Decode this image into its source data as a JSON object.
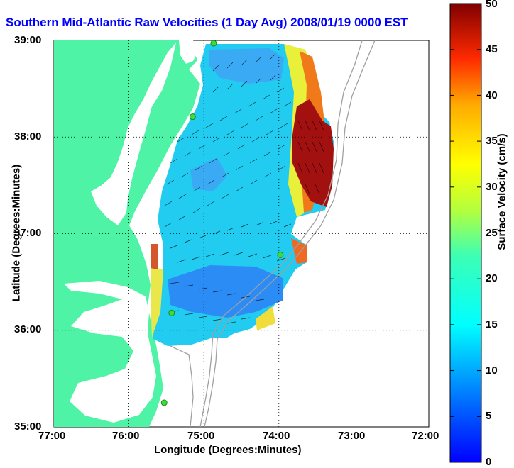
{
  "title": "Southern Mid-Atlantic Raw Velocities (1 Day Avg) 2008/01/19 0000 EST",
  "xlabel": "Longitude (Degrees:Minutes)",
  "ylabel": "Latitude (Degrees:Minutes)",
  "colorbar_label": "Surface Velocity (cm/s)",
  "x_ticks": [
    "77:00",
    "76:00",
    "75:00",
    "74:00",
    "73:00",
    "72:00"
  ],
  "y_ticks": [
    "39:00",
    "38:00",
    "37:00",
    "36:00",
    "35:00"
  ],
  "colorbar_ticks": [
    "50",
    "45",
    "40",
    "35",
    "30",
    "25",
    "20",
    "15",
    "10",
    "5",
    "0"
  ],
  "colors": {
    "title": "#0000ff",
    "land": "#4ef3a6",
    "water": "#ffffff",
    "contour": "#a0a0a0",
    "vectors": "#000000",
    "station": "#3cdc3c"
  },
  "chart_data": {
    "type": "heatmap",
    "title": "Southern Mid-Atlantic Raw Velocities (1 Day Avg) 2008/01/19 0000 EST",
    "xlabel": "Longitude (Degrees:Minutes)",
    "ylabel": "Latitude (Degrees:Minutes)",
    "xlim": [
      -77,
      -72
    ],
    "ylim": [
      35,
      39
    ],
    "colorbar": {
      "label": "Surface Velocity (cm/s)",
      "range": [
        0,
        50
      ],
      "colormap": "jet"
    },
    "grid": true,
    "stations": [
      {
        "lon": -74.87,
        "lat": 38.97
      },
      {
        "lon": -75.15,
        "lat": 38.21
      },
      {
        "lon": -75.43,
        "lat": 36.18
      },
      {
        "lon": -75.53,
        "lat": 35.25
      },
      {
        "lon": -73.98,
        "lat": 36.78
      }
    ]
  }
}
